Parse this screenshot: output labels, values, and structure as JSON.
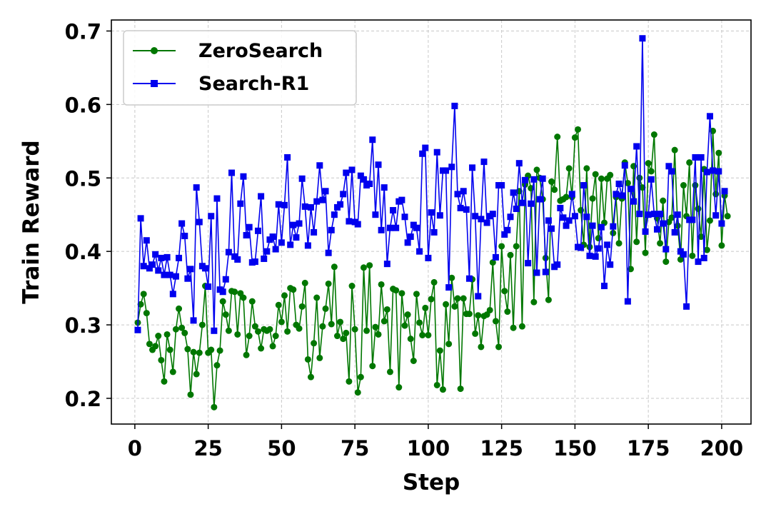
{
  "chart_data": {
    "type": "line",
    "xlabel": "Step",
    "ylabel": "Train Reward",
    "xlim": [
      -8,
      210
    ],
    "ylim": [
      0.165,
      0.715
    ],
    "x_ticks": [
      0,
      25,
      50,
      75,
      100,
      125,
      150,
      175,
      200
    ],
    "y_ticks": [
      0.2,
      0.3,
      0.4,
      0.5,
      0.6,
      0.7
    ],
    "grid": true,
    "legend_position": "top-left",
    "series": [
      {
        "name": "ZeroSearch",
        "color": "#007700",
        "marker": "circle",
        "x_start": 1,
        "values": [
          0.303,
          0.328,
          0.342,
          0.316,
          0.274,
          0.266,
          0.271,
          0.285,
          0.252,
          0.223,
          0.287,
          0.266,
          0.236,
          0.294,
          0.322,
          0.296,
          0.289,
          0.267,
          0.205,
          0.263,
          0.233,
          0.262,
          0.3,
          0.353,
          0.262,
          0.266,
          0.188,
          0.245,
          0.265,
          0.332,
          0.314,
          0.292,
          0.346,
          0.345,
          0.287,
          0.343,
          0.337,
          0.259,
          0.285,
          0.332,
          0.298,
          0.291,
          0.268,
          0.294,
          0.292,
          0.294,
          0.271,
          0.285,
          0.327,
          0.304,
          0.34,
          0.291,
          0.35,
          0.348,
          0.3,
          0.295,
          0.325,
          0.357,
          0.253,
          0.229,
          0.275,
          0.337,
          0.255,
          0.298,
          0.322,
          0.356,
          0.301,
          0.379,
          0.285,
          0.304,
          0.281,
          0.289,
          0.223,
          0.353,
          0.294,
          0.208,
          0.229,
          0.378,
          0.292,
          0.381,
          0.244,
          0.297,
          0.287,
          0.355,
          0.305,
          0.321,
          0.236,
          0.349,
          0.347,
          0.215,
          0.343,
          0.299,
          0.314,
          0.281,
          0.251,
          0.342,
          0.303,
          0.286,
          0.323,
          0.286,
          0.335,
          0.358,
          0.218,
          0.265,
          0.212,
          0.328,
          0.274,
          0.364,
          0.325,
          0.336,
          0.213,
          0.336,
          0.315,
          0.315,
          0.362,
          0.288,
          0.313,
          0.27,
          0.312,
          0.314,
          0.32,
          0.385,
          0.305,
          0.27,
          0.407,
          0.346,
          0.318,
          0.395,
          0.296,
          0.407,
          0.482,
          0.298,
          0.491,
          0.503,
          0.486,
          0.331,
          0.511,
          0.5,
          0.471,
          0.391,
          0.334,
          0.495,
          0.484,
          0.556,
          0.469,
          0.471,
          0.474,
          0.513,
          0.474,
          0.555,
          0.566,
          0.456,
          0.409,
          0.513,
          0.406,
          0.472,
          0.505,
          0.418,
          0.499,
          0.439,
          0.499,
          0.504,
          0.425,
          0.474,
          0.411,
          0.472,
          0.521,
          0.493,
          0.376,
          0.516,
          0.413,
          0.5,
          0.487,
          0.398,
          0.52,
          0.509,
          0.559,
          0.445,
          0.411,
          0.469,
          0.386,
          0.44,
          0.446,
          0.538,
          0.435,
          0.389,
          0.49,
          0.448,
          0.521,
          0.394,
          0.49,
          0.458,
          0.42,
          0.512,
          0.402,
          0.442,
          0.564,
          0.478,
          0.534,
          0.408,
          0.476,
          0.448
        ]
      },
      {
        "name": "Search-R1",
        "color": "#0000ee",
        "marker": "square",
        "x_start": 1,
        "values": [
          0.293,
          0.445,
          0.38,
          0.415,
          0.377,
          0.382,
          0.396,
          0.374,
          0.391,
          0.368,
          0.392,
          0.368,
          0.342,
          0.366,
          0.391,
          0.438,
          0.421,
          0.363,
          0.376,
          0.306,
          0.487,
          0.44,
          0.38,
          0.377,
          0.352,
          0.448,
          0.292,
          0.472,
          0.348,
          0.345,
          0.362,
          0.399,
          0.507,
          0.393,
          0.389,
          0.465,
          0.502,
          0.422,
          0.433,
          0.385,
          0.386,
          0.428,
          0.475,
          0.39,
          0.4,
          0.416,
          0.42,
          0.403,
          0.464,
          0.412,
          0.463,
          0.528,
          0.409,
          0.436,
          0.419,
          0.438,
          0.499,
          0.461,
          0.408,
          0.46,
          0.426,
          0.468,
          0.517,
          0.47,
          0.482,
          0.398,
          0.429,
          0.45,
          0.46,
          0.464,
          0.478,
          0.507,
          0.441,
          0.511,
          0.44,
          0.437,
          0.503,
          0.498,
          0.49,
          0.492,
          0.552,
          0.45,
          0.518,
          0.429,
          0.487,
          0.383,
          0.432,
          0.456,
          0.432,
          0.468,
          0.47,
          0.447,
          0.412,
          0.42,
          0.436,
          0.432,
          0.4,
          0.533,
          0.541,
          0.391,
          0.453,
          0.426,
          0.535,
          0.449,
          0.51,
          0.51,
          0.351,
          0.515,
          0.598,
          0.478,
          0.459,
          0.482,
          0.457,
          0.363,
          0.514,
          0.448,
          0.339,
          0.444,
          0.522,
          0.439,
          0.448,
          0.451,
          0.392,
          0.49,
          0.49,
          0.423,
          0.429,
          0.447,
          0.48,
          0.458,
          0.52,
          0.466,
          0.497,
          0.384,
          0.465,
          0.498,
          0.371,
          0.471,
          0.499,
          0.372,
          0.442,
          0.431,
          0.379,
          0.382,
          0.459,
          0.446,
          0.435,
          0.442,
          0.478,
          0.448,
          0.406,
          0.405,
          0.49,
          0.447,
          0.394,
          0.435,
          0.393,
          0.404,
          0.433,
          0.353,
          0.409,
          0.382,
          0.434,
          0.478,
          0.492,
          0.476,
          0.517,
          0.332,
          0.485,
          0.468,
          0.543,
          0.451,
          0.69,
          0.427,
          0.45,
          0.498,
          0.451,
          0.43,
          0.451,
          0.438,
          0.403,
          0.516,
          0.509,
          0.426,
          0.45,
          0.4,
          0.396,
          0.325,
          0.443,
          0.443,
          0.528,
          0.386,
          0.528,
          0.391,
          0.508,
          0.584,
          0.51,
          0.449,
          0.509,
          0.438,
          0.482
        ]
      }
    ]
  }
}
